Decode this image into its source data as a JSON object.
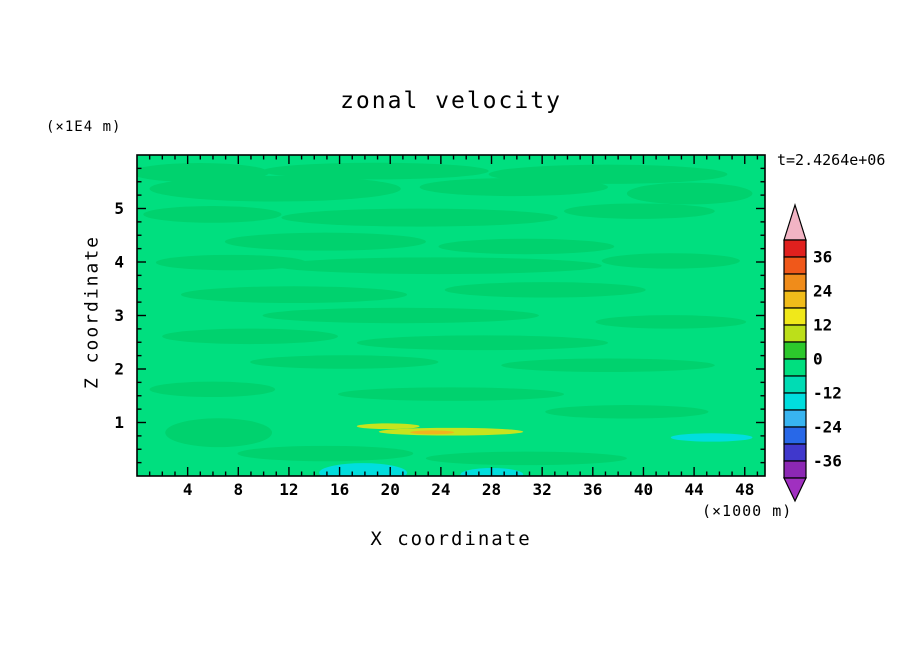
{
  "chart_data": {
    "type": "heatmap",
    "title": "zonal velocity",
    "timestamp": "t=2.4264e+06",
    "xlabel": "X coordinate",
    "ylabel": "Z coordinate",
    "x_unit": "(×1000 m)",
    "y_unit": "(×1E4 m)",
    "x_axis": {
      "range": [
        0,
        49.6
      ],
      "major_ticks": [
        4,
        8,
        12,
        16,
        20,
        24,
        28,
        32,
        36,
        40,
        44,
        48
      ],
      "minor_step": 1
    },
    "y_axis": {
      "range": [
        0,
        6
      ],
      "major_ticks": [
        1,
        2,
        3,
        4,
        5
      ],
      "minor_step": 0.25
    },
    "colorbar": {
      "labels": [
        "36",
        "24",
        "12",
        "0",
        "-12",
        "-24",
        "-36"
      ],
      "levels": [
        42,
        36,
        30,
        24,
        18,
        12,
        6,
        0,
        -6,
        -12,
        -18,
        -24,
        -30,
        -36,
        -42
      ],
      "segment_colors": [
        "#e0201e",
        "#f0581a",
        "#f08c1a",
        "#f0bc1a",
        "#f0e81a",
        "#bcdf1a",
        "#2cc82c",
        "#00df7f",
        "#00dcb4",
        "#00dede",
        "#38b4f0",
        "#2868e8",
        "#4038cc",
        "#8c28b4"
      ],
      "top_arrow_color": "#f2b4c4",
      "bottom_arrow_color": "#a030c0"
    },
    "field": {
      "base_color": "#00df7f",
      "band_color": "#00d26e",
      "regions": [
        {
          "cx": 0.1,
          "cy": 0.055,
          "rx": 0.11,
          "ry": 0.03,
          "color": "#00d26e"
        },
        {
          "cx": 0.38,
          "cy": 0.05,
          "rx": 0.18,
          "ry": 0.026,
          "color": "#00d26e"
        },
        {
          "cx": 0.75,
          "cy": 0.06,
          "rx": 0.19,
          "ry": 0.03,
          "color": "#00d26e"
        },
        {
          "cx": 0.22,
          "cy": 0.105,
          "rx": 0.2,
          "ry": 0.04,
          "color": "#00d26e"
        },
        {
          "cx": 0.6,
          "cy": 0.1,
          "rx": 0.15,
          "ry": 0.028,
          "color": "#00d26e"
        },
        {
          "cx": 0.88,
          "cy": 0.12,
          "rx": 0.1,
          "ry": 0.034,
          "color": "#00d26e"
        },
        {
          "cx": 0.12,
          "cy": 0.185,
          "rx": 0.11,
          "ry": 0.026,
          "color": "#00d26e"
        },
        {
          "cx": 0.45,
          "cy": 0.195,
          "rx": 0.22,
          "ry": 0.028,
          "color": "#00d26e"
        },
        {
          "cx": 0.8,
          "cy": 0.175,
          "rx": 0.12,
          "ry": 0.024,
          "color": "#00d26e"
        },
        {
          "cx": 0.3,
          "cy": 0.27,
          "rx": 0.16,
          "ry": 0.028,
          "color": "#00d26e"
        },
        {
          "cx": 0.62,
          "cy": 0.285,
          "rx": 0.14,
          "ry": 0.024,
          "color": "#00d26e"
        },
        {
          "cx": 0.15,
          "cy": 0.335,
          "rx": 0.12,
          "ry": 0.024,
          "color": "#00d26e"
        },
        {
          "cx": 0.48,
          "cy": 0.345,
          "rx": 0.26,
          "ry": 0.026,
          "color": "#00d26e"
        },
        {
          "cx": 0.85,
          "cy": 0.33,
          "rx": 0.11,
          "ry": 0.024,
          "color": "#00d26e"
        },
        {
          "cx": 0.25,
          "cy": 0.435,
          "rx": 0.18,
          "ry": 0.026,
          "color": "#00d26e"
        },
        {
          "cx": 0.65,
          "cy": 0.42,
          "rx": 0.16,
          "ry": 0.024,
          "color": "#00d26e"
        },
        {
          "cx": 0.42,
          "cy": 0.5,
          "rx": 0.22,
          "ry": 0.024,
          "color": "#00d26e"
        },
        {
          "cx": 0.85,
          "cy": 0.52,
          "rx": 0.12,
          "ry": 0.021,
          "color": "#00d26e"
        },
        {
          "cx": 0.18,
          "cy": 0.565,
          "rx": 0.14,
          "ry": 0.024,
          "color": "#00d26e"
        },
        {
          "cx": 0.55,
          "cy": 0.585,
          "rx": 0.2,
          "ry": 0.023,
          "color": "#00d26e"
        },
        {
          "cx": 0.33,
          "cy": 0.645,
          "rx": 0.15,
          "ry": 0.021,
          "color": "#00d26e"
        },
        {
          "cx": 0.75,
          "cy": 0.655,
          "rx": 0.17,
          "ry": 0.021,
          "color": "#00d26e"
        },
        {
          "cx": 0.12,
          "cy": 0.73,
          "rx": 0.1,
          "ry": 0.024,
          "color": "#00d26e"
        },
        {
          "cx": 0.5,
          "cy": 0.745,
          "rx": 0.18,
          "ry": 0.021,
          "color": "#00d26e"
        },
        {
          "cx": 0.13,
          "cy": 0.865,
          "rx": 0.085,
          "ry": 0.045,
          "color": "#00d26e"
        },
        {
          "cx": 0.78,
          "cy": 0.8,
          "rx": 0.13,
          "ry": 0.021,
          "color": "#00d26e"
        },
        {
          "cx": 0.3,
          "cy": 0.93,
          "rx": 0.14,
          "ry": 0.024,
          "color": "#00d26e"
        },
        {
          "cx": 0.62,
          "cy": 0.945,
          "rx": 0.16,
          "ry": 0.021,
          "color": "#00d26e"
        },
        {
          "cx": 0.5,
          "cy": 0.862,
          "rx": 0.115,
          "ry": 0.012,
          "color": "#c6e41e"
        },
        {
          "cx": 0.4,
          "cy": 0.845,
          "rx": 0.05,
          "ry": 0.009,
          "color": "#c6e41e"
        },
        {
          "cx": 0.47,
          "cy": 0.864,
          "rx": 0.035,
          "ry": 0.006,
          "color": "#f0b41e"
        },
        {
          "cx": 0.915,
          "cy": 0.88,
          "rx": 0.065,
          "ry": 0.013,
          "color": "#00dede"
        },
        {
          "cx": 0.36,
          "cy": 0.99,
          "rx": 0.07,
          "ry": 0.03,
          "color": "#00dede"
        },
        {
          "cx": 0.565,
          "cy": 0.995,
          "rx": 0.05,
          "ry": 0.02,
          "color": "#00dede"
        }
      ]
    }
  }
}
